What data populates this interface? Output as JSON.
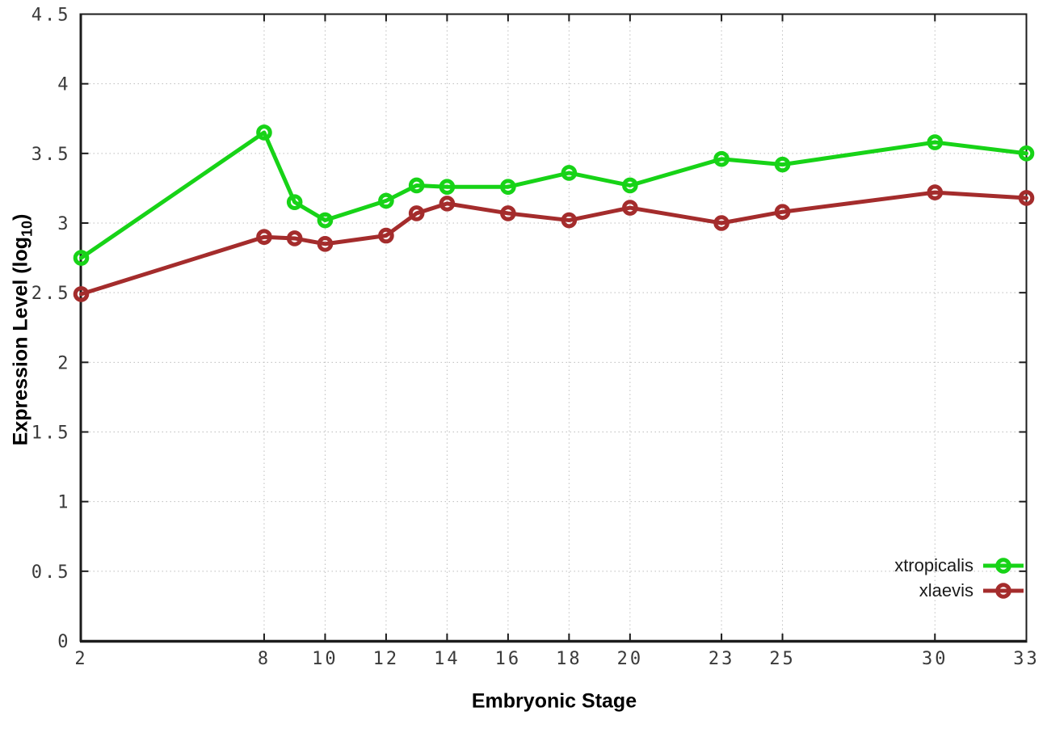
{
  "chart_data": {
    "type": "line",
    "xlabel": "Embryonic Stage",
    "ylabel": {
      "text": "Expression Level (log",
      "sub": "10",
      "suffix": ")"
    },
    "x": [
      2,
      8,
      9,
      10,
      12,
      13,
      14,
      16,
      18,
      20,
      23,
      25,
      30,
      33
    ],
    "series": [
      {
        "name": "xtropicalis",
        "color": "#17D317",
        "values": [
          2.75,
          3.65,
          3.15,
          3.02,
          3.16,
          3.27,
          3.26,
          3.26,
          3.36,
          3.27,
          3.46,
          3.42,
          3.58,
          3.5
        ]
      },
      {
        "name": "xlaevis",
        "color": "#A42C2C",
        "values": [
          2.49,
          2.9,
          2.89,
          2.85,
          2.91,
          3.07,
          3.14,
          3.07,
          3.02,
          3.11,
          3.0,
          3.08,
          3.22,
          3.18
        ]
      }
    ],
    "xlim": [
      2,
      33
    ],
    "ylim": [
      0,
      4.5
    ],
    "x_tick_values": [
      2,
      8,
      10,
      12,
      14,
      16,
      18,
      20,
      23,
      25,
      30,
      33
    ],
    "x_tick_labels": [
      "2",
      "8",
      "10",
      "12",
      "14",
      "16",
      "18",
      "20",
      "23",
      "25",
      "30",
      "33"
    ],
    "y_tick_values": [
      0,
      0.5,
      1,
      1.5,
      2,
      2.5,
      3,
      3.5,
      4,
      4.5
    ],
    "y_tick_labels": [
      "0",
      "0.5",
      "1",
      "1.5",
      "2",
      "2.5",
      "3",
      "3.5",
      "4",
      "4.5"
    ],
    "grid": true,
    "legend_position": "bottom-right",
    "marker": "open-circle"
  },
  "legend": {
    "items": [
      {
        "label": "xtropicalis",
        "color": "#17D317"
      },
      {
        "label": "xlaevis",
        "color": "#A42C2C"
      }
    ]
  },
  "colors": {
    "axis": "#1c1c1c",
    "grid": "#bdbdbd",
    "tick_text": "#3a3a3a",
    "background": "#ffffff"
  }
}
